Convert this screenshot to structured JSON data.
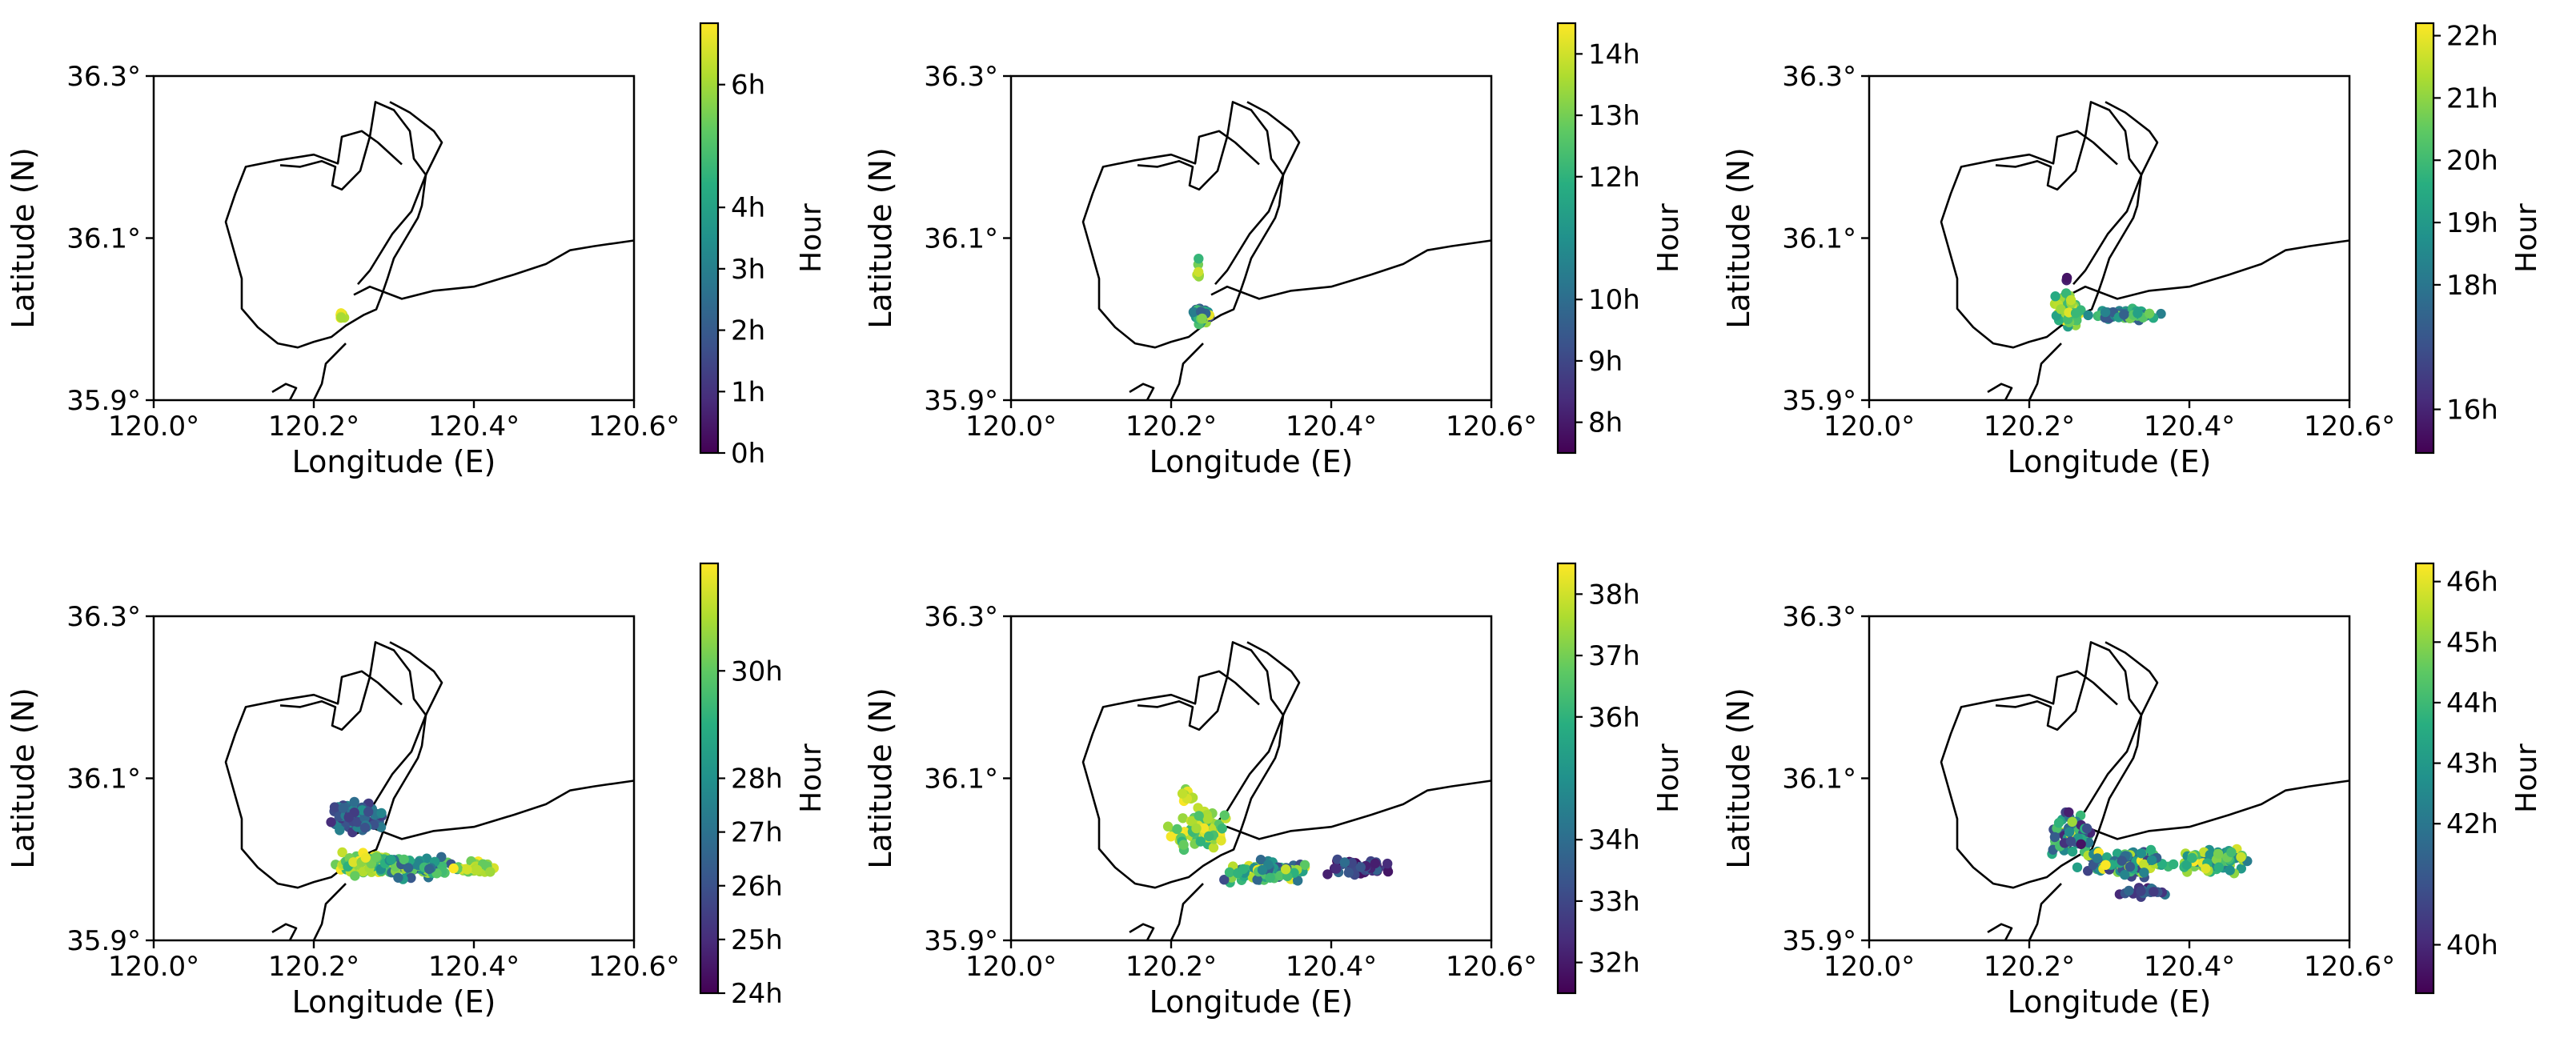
{
  "chart_data": [
    {
      "type": "scatter",
      "xlabel": "Longitude (E)",
      "ylabel": "Latitude (N)",
      "xlim": [
        120.0,
        120.6
      ],
      "ylim": [
        35.9,
        36.3
      ],
      "x_ticks": [
        "120.0°",
        "120.2°",
        "120.4°",
        "120.6°"
      ],
      "y_ticks": [
        "35.9°",
        "36.1°",
        "36.3°"
      ],
      "colorbar": {
        "label": "Hour",
        "range": [
          0,
          7
        ],
        "ticks": [
          0,
          1,
          2,
          3,
          4,
          6
        ],
        "tick_labels": [
          "0h",
          "1h",
          "2h",
          "3h",
          "4h",
          "6h"
        ]
      },
      "clusters": [
        {
          "x": 120.235,
          "y": 36.004,
          "sx": 0.003,
          "sy": 0.003,
          "n": 12,
          "t0": 6,
          "t1": 7,
          "seed": 11
        }
      ]
    },
    {
      "type": "scatter",
      "xlabel": "Longitude (E)",
      "ylabel": "Latitude (N)",
      "xlim": [
        120.0,
        120.6
      ],
      "ylim": [
        35.9,
        36.3
      ],
      "x_ticks": [
        "120.0°",
        "120.2°",
        "120.4°",
        "120.6°"
      ],
      "y_ticks": [
        "35.9°",
        "36.1°",
        "36.3°"
      ],
      "colorbar": {
        "label": "Hour",
        "range": [
          7.5,
          14.5
        ],
        "ticks": [
          8,
          9,
          10,
          12,
          13,
          14
        ],
        "tick_labels": [
          "8h",
          "9h",
          "10h",
          "12h",
          "13h",
          "14h"
        ]
      },
      "clusters": [
        {
          "x": 120.238,
          "y": 36.005,
          "sx": 0.008,
          "sy": 0.008,
          "n": 45,
          "t0": 9,
          "t1": 14.4,
          "seed": 21
        },
        {
          "x": 120.233,
          "y": 36.062,
          "sx": 0.003,
          "sy": 0.01,
          "n": 6,
          "t0": 12,
          "t1": 14.4,
          "seed": 22
        }
      ]
    },
    {
      "type": "scatter",
      "xlabel": "Longitude (E)",
      "ylabel": "Latitude (N)",
      "xlim": [
        120.0,
        120.6
      ],
      "ylim": [
        35.9,
        36.3
      ],
      "x_ticks": [
        "120.0°",
        "120.2°",
        "120.4°",
        "120.6°"
      ],
      "y_ticks": [
        "35.9°",
        "36.1°",
        "36.3°"
      ],
      "colorbar": {
        "label": "Hour",
        "range": [
          15.3,
          22.2
        ],
        "ticks": [
          16,
          18,
          19,
          20,
          21,
          22
        ],
        "tick_labels": [
          "16h",
          "18h",
          "19h",
          "20h",
          "21h",
          "22h"
        ]
      },
      "clusters": [
        {
          "x": 120.25,
          "y": 36.012,
          "sx": 0.012,
          "sy": 0.015,
          "n": 70,
          "t0": 19,
          "t1": 22.2,
          "seed": 31
        },
        {
          "x": 120.32,
          "y": 36.005,
          "sx": 0.03,
          "sy": 0.006,
          "n": 80,
          "t0": 17,
          "t1": 21,
          "seed": 32
        },
        {
          "x": 120.248,
          "y": 36.048,
          "sx": 0.002,
          "sy": 0.003,
          "n": 2,
          "t0": 15.5,
          "t1": 16,
          "seed": 33
        }
      ]
    },
    {
      "type": "scatter",
      "xlabel": "Longitude (E)",
      "ylabel": "Latitude (N)",
      "xlim": [
        120.0,
        120.6
      ],
      "ylim": [
        35.9,
        36.3
      ],
      "x_ticks": [
        "120.0°",
        "120.2°",
        "120.4°",
        "120.6°"
      ],
      "y_ticks": [
        "35.9°",
        "36.1°",
        "36.3°"
      ],
      "colorbar": {
        "label": "Hour",
        "range": [
          24,
          32
        ],
        "ticks": [
          24,
          25,
          26,
          27,
          28,
          30
        ],
        "tick_labels": [
          "24h",
          "25h",
          "26h",
          "27h",
          "28h",
          "30h"
        ]
      },
      "clusters": [
        {
          "x": 120.25,
          "y": 36.055,
          "sx": 0.025,
          "sy": 0.015,
          "n": 90,
          "t0": 25,
          "t1": 28,
          "seed": 41
        },
        {
          "x": 120.27,
          "y": 35.995,
          "sx": 0.03,
          "sy": 0.01,
          "n": 120,
          "t0": 29,
          "t1": 32,
          "seed": 42
        },
        {
          "x": 120.33,
          "y": 35.99,
          "sx": 0.035,
          "sy": 0.01,
          "n": 80,
          "t0": 26,
          "t1": 31,
          "seed": 43
        },
        {
          "x": 120.4,
          "y": 35.99,
          "sx": 0.018,
          "sy": 0.006,
          "n": 30,
          "t0": 30,
          "t1": 32,
          "seed": 44
        }
      ]
    },
    {
      "type": "scatter",
      "xlabel": "Longitude (E)",
      "ylabel": "Latitude (N)",
      "xlim": [
        120.0,
        120.6
      ],
      "ylim": [
        35.9,
        36.3
      ],
      "x_ticks": [
        "120.0°",
        "120.2°",
        "120.4°",
        "120.6°"
      ],
      "y_ticks": [
        "35.9°",
        "36.1°",
        "36.3°"
      ],
      "colorbar": {
        "label": "Hour",
        "range": [
          31.5,
          38.5
        ],
        "ticks": [
          32,
          33,
          34,
          36,
          37,
          38
        ],
        "tick_labels": [
          "32h",
          "33h",
          "34h",
          "36h",
          "37h",
          "38h"
        ]
      },
      "clusters": [
        {
          "x": 120.235,
          "y": 36.035,
          "sx": 0.025,
          "sy": 0.02,
          "n": 80,
          "t0": 36,
          "t1": 38.5,
          "seed": 51
        },
        {
          "x": 120.32,
          "y": 35.985,
          "sx": 0.04,
          "sy": 0.01,
          "n": 110,
          "t0": 33,
          "t1": 38.5,
          "seed": 52
        },
        {
          "x": 120.44,
          "y": 35.99,
          "sx": 0.03,
          "sy": 0.008,
          "n": 60,
          "t0": 31.6,
          "t1": 34,
          "seed": 53
        },
        {
          "x": 120.22,
          "y": 36.08,
          "sx": 0.008,
          "sy": 0.012,
          "n": 10,
          "t0": 37,
          "t1": 38.5,
          "seed": 54
        }
      ]
    },
    {
      "type": "scatter",
      "xlabel": "Longitude (E)",
      "ylabel": "Latitude (N)",
      "xlim": [
        120.0,
        120.6
      ],
      "ylim": [
        35.9,
        36.3
      ],
      "x_ticks": [
        "120.0°",
        "120.2°",
        "120.4°",
        "120.6°"
      ],
      "y_ticks": [
        "35.9°",
        "36.1°",
        "36.3°"
      ],
      "colorbar": {
        "label": "Hour",
        "range": [
          39.2,
          46.3
        ],
        "ticks": [
          40,
          42,
          43,
          44,
          45,
          46
        ],
        "tick_labels": [
          "40h",
          "42h",
          "43h",
          "44h",
          "45h",
          "46h"
        ]
      },
      "clusters": [
        {
          "x": 120.255,
          "y": 36.03,
          "sx": 0.02,
          "sy": 0.02,
          "n": 60,
          "t0": 39.2,
          "t1": 46.3,
          "seed": 61
        },
        {
          "x": 120.32,
          "y": 35.995,
          "sx": 0.04,
          "sy": 0.012,
          "n": 130,
          "t0": 40.5,
          "t1": 46.3,
          "seed": 62
        },
        {
          "x": 120.43,
          "y": 36.0,
          "sx": 0.035,
          "sy": 0.012,
          "n": 80,
          "t0": 42,
          "t1": 46.3,
          "seed": 63
        },
        {
          "x": 120.34,
          "y": 35.962,
          "sx": 0.03,
          "sy": 0.006,
          "n": 18,
          "t0": 39.5,
          "t1": 42,
          "seed": 64
        }
      ]
    }
  ],
  "coastline": [
    [
      120.31,
      36.191
    ],
    [
      120.28,
      36.218
    ],
    [
      120.26,
      36.232
    ],
    [
      120.235,
      36.225
    ],
    [
      120.23,
      36.192
    ],
    [
      120.2,
      36.203
    ],
    [
      120.155,
      36.196
    ],
    [
      120.115,
      36.188
    ],
    [
      120.102,
      36.155
    ],
    [
      120.09,
      36.12
    ],
    [
      120.1,
      36.085
    ],
    [
      120.11,
      36.05
    ],
    [
      120.11,
      36.013
    ],
    [
      120.13,
      35.99
    ],
    [
      120.155,
      35.97
    ],
    [
      120.18,
      35.965
    ],
    [
      120.2,
      35.972
    ],
    [
      120.222,
      35.978
    ],
    [
      120.24,
      35.992
    ],
    [
      120.262,
      36.005
    ],
    [
      120.278,
      36.012
    ],
    [
      120.285,
      36.03
    ],
    [
      120.292,
      36.05
    ],
    [
      120.3,
      36.075
    ],
    [
      120.315,
      36.1
    ],
    [
      120.33,
      36.125
    ],
    [
      120.335,
      36.14
    ],
    [
      120.34,
      36.178
    ],
    [
      120.325,
      36.198
    ],
    [
      120.32,
      36.232
    ],
    [
      120.3,
      36.258
    ],
    [
      120.277,
      36.268
    ],
    [
      120.27,
      36.225
    ],
    [
      120.258,
      36.183
    ],
    [
      120.235,
      36.16
    ],
    [
      120.223,
      36.165
    ],
    [
      120.227,
      36.188
    ],
    [
      120.21,
      36.195
    ],
    [
      120.183,
      36.188
    ],
    [
      120.158,
      36.19
    ]
  ],
  "coastline_east": [
    [
      120.255,
      36.043
    ],
    [
      120.27,
      36.06
    ],
    [
      120.298,
      36.105
    ],
    [
      120.322,
      36.133
    ],
    [
      120.34,
      36.178
    ],
    [
      120.36,
      36.218
    ],
    [
      120.35,
      36.232
    ],
    [
      120.32,
      36.255
    ],
    [
      120.295,
      36.268
    ]
  ],
  "coastline_south": [
    [
      120.25,
      36.03
    ],
    [
      120.27,
      36.04
    ],
    [
      120.31,
      36.025
    ],
    [
      120.35,
      36.035
    ],
    [
      120.4,
      36.04
    ],
    [
      120.45,
      36.055
    ],
    [
      120.49,
      36.068
    ],
    [
      120.52,
      36.085
    ],
    [
      120.55,
      36.09
    ],
    [
      120.6,
      36.097
    ]
  ],
  "coastline_small": [
    [
      120.24,
      35.97
    ],
    [
      120.23,
      35.96
    ],
    [
      120.215,
      35.945
    ],
    [
      120.21,
      35.92
    ],
    [
      120.2,
      35.9
    ]
  ],
  "coastline_bay": [
    [
      120.148,
      35.91
    ],
    [
      120.165,
      35.92
    ],
    [
      120.178,
      35.915
    ],
    [
      120.17,
      35.9
    ]
  ]
}
